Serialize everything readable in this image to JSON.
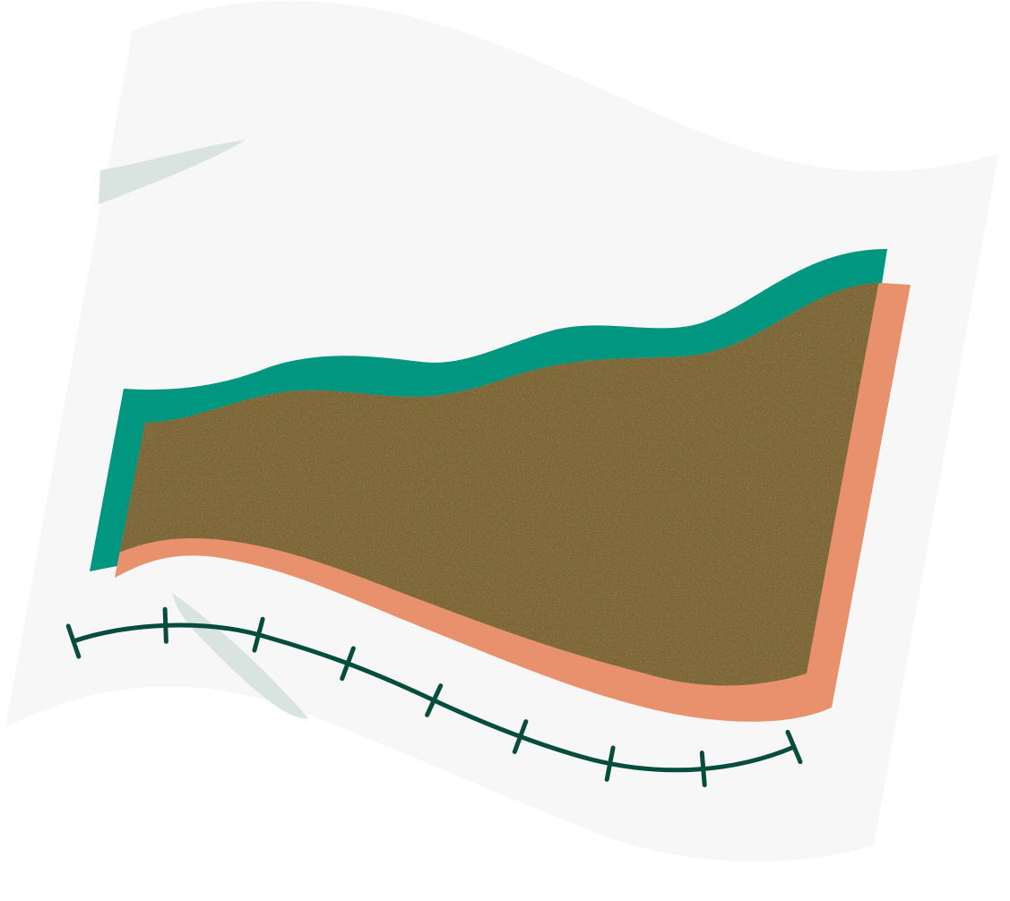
{
  "illustration": {
    "subject": "waving-flag-with-overlapping-bands",
    "colors": {
      "sheet": "#f7f7f7",
      "sheet_streak": "#d9e3df",
      "band_back": "#00967f",
      "band_front": "#e8916c",
      "band_overlap": "#7b6637",
      "axis_line": "#064d3e"
    },
    "axis": {
      "tick_count": 9
    }
  }
}
